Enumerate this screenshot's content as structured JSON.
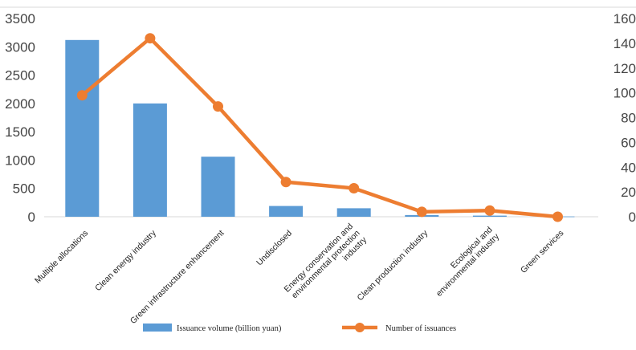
{
  "chart_data": {
    "type": "bar",
    "categories": [
      [
        "Multiple allocations"
      ],
      [
        "Clean energy industry"
      ],
      [
        "Green infrastructure enhancement"
      ],
      [
        "Undisclosed"
      ],
      [
        "Energy conservation and",
        "environmental protection",
        "industry"
      ],
      [
        "Clean production industry"
      ],
      [
        "Ecological and",
        "environmental industry"
      ],
      [
        "Green services"
      ]
    ],
    "series": [
      {
        "name": "Issuance volume (billion yuan)",
        "type": "bar",
        "axis": "left",
        "color": "#5B9BD5",
        "values": [
          3120,
          2000,
          1060,
          190,
          150,
          30,
          20,
          5
        ]
      },
      {
        "name": "Number of issuances",
        "type": "line",
        "axis": "right",
        "color": "#ED7D31",
        "values": [
          98,
          144,
          89,
          28,
          23,
          4,
          5,
          0
        ]
      }
    ],
    "y_left": {
      "min": 0,
      "max": 3500,
      "ticks": [
        "0",
        "500",
        "1000",
        "1500",
        "2000",
        "2500",
        "3000",
        "3500"
      ]
    },
    "y_right": {
      "min": 0,
      "max": 160,
      "ticks": [
        "0",
        "20",
        "40",
        "60",
        "80",
        "100",
        "120",
        "140",
        "160"
      ]
    },
    "grid": false,
    "legend_position": "bottom"
  }
}
